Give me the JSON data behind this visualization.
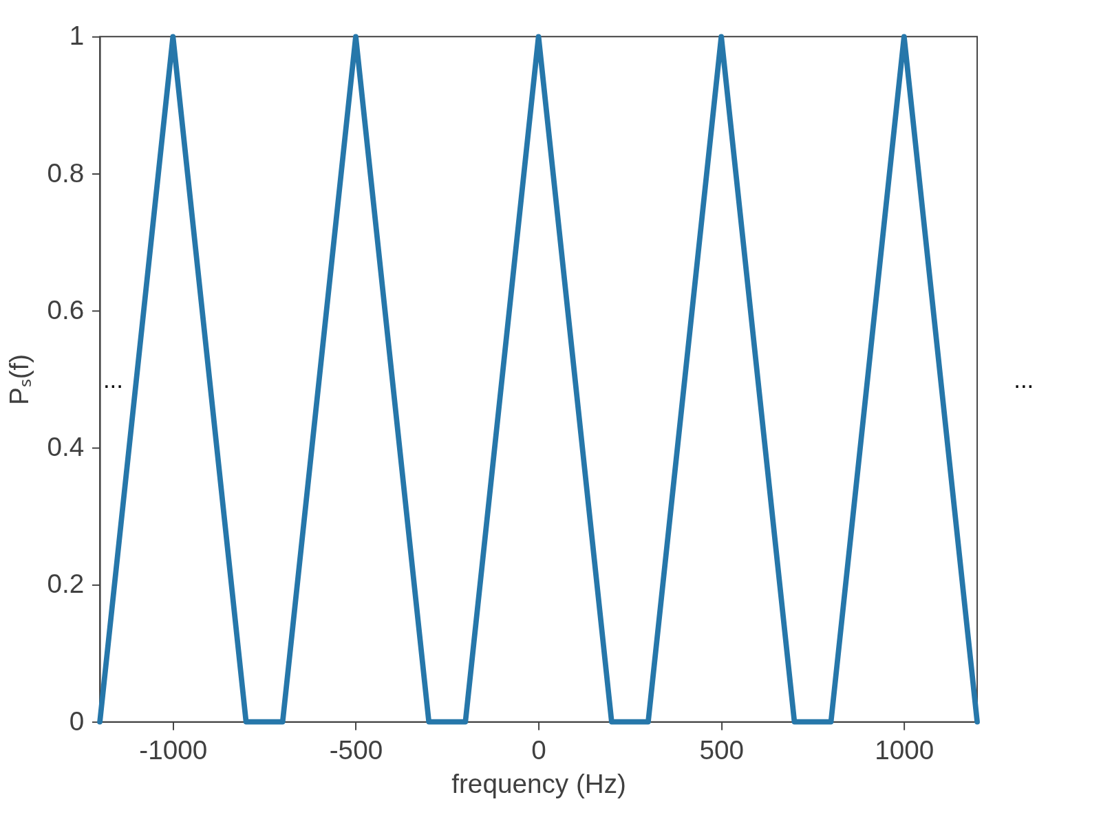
{
  "chart_data": {
    "type": "line",
    "x": [
      -1200,
      -1000,
      -800,
      -700,
      -500,
      -300,
      -200,
      0,
      200,
      300,
      500,
      700,
      800,
      1000,
      1200
    ],
    "series": [
      {
        "color": "#2677aa",
        "values": [
          0,
          1,
          0,
          0,
          1,
          0,
          0,
          1,
          0,
          0,
          1,
          0,
          0,
          1,
          0
        ]
      }
    ],
    "xlabel": "frequency (Hz)",
    "ylabel": "Pₛ(f)",
    "xlim": [
      -1200,
      1200
    ],
    "ylim": [
      0,
      1
    ],
    "xticks": [
      -1000,
      -500,
      0,
      500,
      1000
    ],
    "yticks": [
      0,
      0.2,
      0.4,
      0.6,
      0.8,
      1
    ],
    "annotations": [
      "...",
      "..."
    ],
    "grid": false,
    "marker": "none",
    "line_style": "solid"
  }
}
